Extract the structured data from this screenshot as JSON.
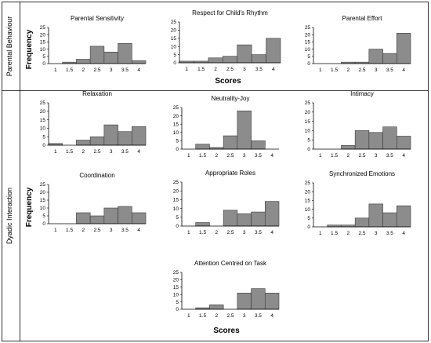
{
  "sections": [
    {
      "label": "Parental Behaviour"
    },
    {
      "label": "Dyadic Interaction"
    }
  ],
  "axis_labels": {
    "frequency": "Frequency",
    "scores": "Scores"
  },
  "chart_data": [
    {
      "type": "bar",
      "title": "Parental Sensitivity",
      "section": "Parental Behaviour",
      "categories": [
        "1",
        "1.5",
        "2",
        "2.5",
        "3",
        "3.5",
        "4"
      ],
      "values": [
        0,
        1,
        3,
        12,
        8,
        14,
        2
      ],
      "ylim": [
        0,
        25
      ],
      "yticks": [
        0,
        5,
        10,
        15,
        20,
        25
      ],
      "ylabel": "Frequency",
      "xlabel": ""
    },
    {
      "type": "bar",
      "title": "Respect for Child's Rhythm",
      "section": "Parental Behaviour",
      "categories": [
        "1",
        "1.5",
        "2",
        "2.5",
        "3",
        "3.5",
        "4"
      ],
      "values": [
        1,
        1,
        3,
        4,
        11,
        5,
        15
      ],
      "ylim": [
        0,
        25
      ],
      "yticks": [
        0,
        5,
        10,
        15,
        20,
        25
      ],
      "ylabel": "",
      "xlabel": "Scores"
    },
    {
      "type": "bar",
      "title": "Parental Effort",
      "section": "Parental Behaviour",
      "categories": [
        "1",
        "1.5",
        "2",
        "2.5",
        "3",
        "3.5",
        "4"
      ],
      "values": [
        0,
        0,
        1,
        1,
        10,
        7,
        21
      ],
      "ylim": [
        0,
        25
      ],
      "yticks": [
        0,
        5,
        10,
        15,
        20,
        25
      ],
      "ylabel": "",
      "xlabel": ""
    },
    {
      "type": "bar",
      "title": "Relaxation",
      "section": "Dyadic Interaction",
      "categories": [
        "1",
        "1.5",
        "2",
        "2.5",
        "3",
        "3.5",
        "4"
      ],
      "values": [
        1,
        0,
        3,
        5,
        12,
        8,
        11
      ],
      "ylim": [
        0,
        25
      ],
      "yticks": [
        0,
        5,
        10,
        15,
        20,
        25
      ],
      "ylabel": "",
      "xlabel": ""
    },
    {
      "type": "bar",
      "title": "Neutrality-Joy",
      "section": "Dyadic Interaction",
      "categories": [
        "1",
        "1.5",
        "2",
        "2.5",
        "3",
        "3.5",
        "4"
      ],
      "values": [
        0,
        3,
        1,
        8,
        23,
        5,
        0
      ],
      "ylim": [
        0,
        25
      ],
      "yticks": [
        0,
        5,
        10,
        15,
        20,
        25
      ],
      "ylabel": "",
      "xlabel": ""
    },
    {
      "type": "bar",
      "title": "Intimacy",
      "section": "Dyadic Interaction",
      "categories": [
        "1",
        "1.5",
        "2",
        "2.5",
        "3",
        "3.5",
        "4"
      ],
      "values": [
        0,
        0,
        2,
        10,
        9,
        12,
        7
      ],
      "ylim": [
        0,
        25
      ],
      "yticks": [
        0,
        5,
        10,
        15,
        20,
        25
      ],
      "ylabel": "",
      "xlabel": ""
    },
    {
      "type": "bar",
      "title": "Coordination",
      "section": "Dyadic Interaction",
      "categories": [
        "1",
        "1.5",
        "2",
        "2.5",
        "3",
        "3.5",
        "4"
      ],
      "values": [
        0,
        0,
        7,
        5,
        10,
        11,
        7
      ],
      "ylim": [
        0,
        25
      ],
      "yticks": [
        0,
        5,
        10,
        15,
        20,
        25
      ],
      "ylabel": "Frequency",
      "xlabel": ""
    },
    {
      "type": "bar",
      "title": "Appropriate Roles",
      "section": "Dyadic Interaction",
      "categories": [
        "1",
        "1.5",
        "2",
        "2.5",
        "3",
        "3.5",
        "4"
      ],
      "values": [
        0,
        2,
        0,
        9,
        7,
        8,
        14
      ],
      "ylim": [
        0,
        25
      ],
      "yticks": [
        0,
        5,
        10,
        15,
        20,
        25
      ],
      "ylabel": "",
      "xlabel": ""
    },
    {
      "type": "bar",
      "title": "Synchronized Emotions",
      "section": "Dyadic Interaction",
      "categories": [
        "1",
        "1.5",
        "2",
        "2.5",
        "3",
        "3.5",
        "4"
      ],
      "values": [
        0,
        1,
        1,
        5,
        13,
        8,
        12
      ],
      "ylim": [
        0,
        25
      ],
      "yticks": [
        0,
        5,
        10,
        15,
        20,
        25
      ],
      "ylabel": "",
      "xlabel": ""
    },
    {
      "type": "bar",
      "title": "Attention Centred on Task",
      "section": "Dyadic Interaction",
      "categories": [
        "1",
        "1.5",
        "2",
        "2.5",
        "3",
        "3.5",
        "4"
      ],
      "values": [
        0,
        1,
        3,
        0,
        11,
        14,
        11
      ],
      "ylim": [
        0,
        25
      ],
      "yticks": [
        0,
        5,
        10,
        15,
        20,
        25
      ],
      "ylabel": "",
      "xlabel": "Scores"
    }
  ]
}
